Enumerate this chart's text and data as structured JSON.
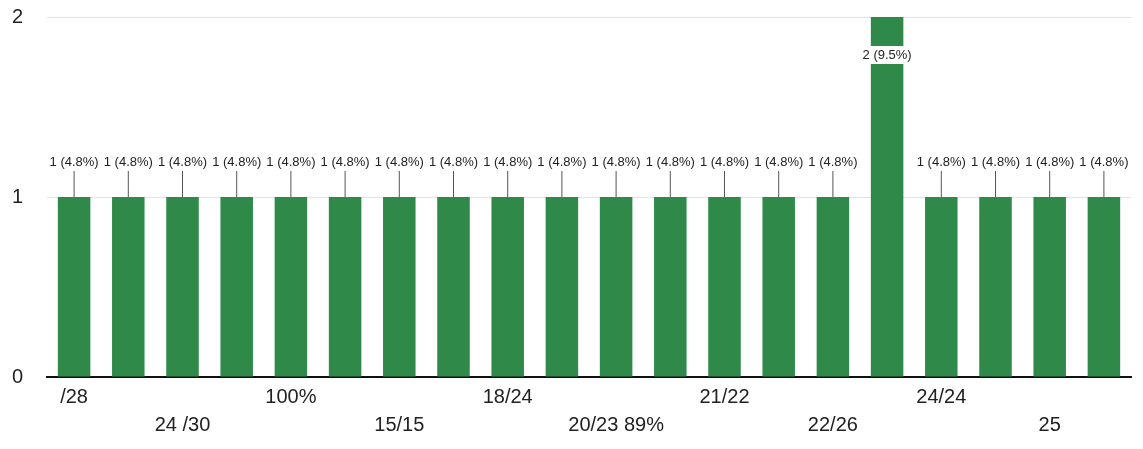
{
  "chart_data": {
    "type": "bar",
    "categories": [
      "/28",
      null,
      "24 /30",
      null,
      "100%",
      null,
      "15/15",
      null,
      "18/24",
      null,
      "20/23 89%",
      null,
      "21/22",
      null,
      "22/26",
      null,
      "24/24",
      null,
      "25",
      null
    ],
    "values": [
      1,
      1,
      1,
      1,
      1,
      1,
      1,
      1,
      1,
      1,
      1,
      1,
      1,
      1,
      1,
      2,
      1,
      1,
      1,
      1
    ],
    "value_labels": [
      "1 (4.8%)",
      "1 (4.8%)",
      "1 (4.8%)",
      "1 (4.8%)",
      "1 (4.8%)",
      "1 (4.8%)",
      "1 (4.8%)",
      "1 (4.8%)",
      "1 (4.8%)",
      "1 (4.8%)",
      "1 (4.8%)",
      "1 (4.8%)",
      "1 (4.8%)",
      "1 (4.8%)",
      "1 (4.8%)",
      "2 (9.5%)",
      "1 (4.8%)",
      "1 (4.8%)",
      "1 (4.8%)",
      "1 (4.8%)"
    ],
    "color": "#2f8a4a",
    "ylim": [
      0,
      2
    ],
    "yticks": [
      0,
      1,
      2
    ],
    "grid": "y"
  }
}
